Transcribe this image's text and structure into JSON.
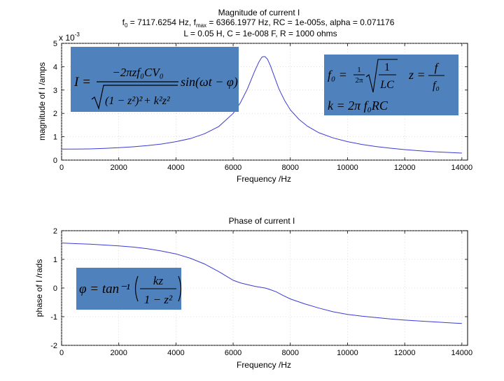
{
  "chart_data": [
    {
      "type": "line",
      "title_lines": [
        "Magnitude of current I",
        "f0 = 7117.6254 Hz, fmax = 6366.1977 Hz, RC = 1e-005s, alpha = 0.071176",
        "L = 0.05 H, C = 1e-008 F, R = 1000 ohms"
      ],
      "title_sub_line2": {
        "f_prefix": "f",
        "f_sub": "0",
        "middle": " = 7117.6254 Hz, f",
        "max_sub": "max",
        "rest": " = 6366.1977 Hz, RC = 1e-005s, alpha = 0.071176"
      },
      "xlabel": "Frequency /Hz",
      "ylabel": "magnitude of I /amps",
      "exponent_label": "x 10",
      "exponent_power": "-3",
      "xlim": [
        0,
        14200
      ],
      "ylim": [
        0,
        5
      ],
      "xticks": [
        "0",
        "2000",
        "4000",
        "6000",
        "8000",
        "10000",
        "12000",
        "14000"
      ],
      "yticks": [
        "0",
        "1",
        "2",
        "3",
        "4",
        "5"
      ],
      "grid": true,
      "line_color": "#3b3bd6",
      "series": [
        {
          "name": "magnitude",
          "x": [
            0,
            500,
            1000,
            1500,
            2000,
            2500,
            3000,
            3500,
            4000,
            4500,
            5000,
            5500,
            6000,
            6250,
            6500,
            6750,
            6900,
            7000,
            7050,
            7117,
            7200,
            7300,
            7450,
            7600,
            7800,
            8000,
            8300,
            8600,
            9000,
            9500,
            10000,
            10500,
            11000,
            11500,
            12000,
            12500,
            13000,
            13500,
            14000
          ],
          "y": [
            0.47,
            0.47,
            0.48,
            0.5,
            0.53,
            0.57,
            0.62,
            0.69,
            0.79,
            0.92,
            1.13,
            1.44,
            2.0,
            2.45,
            3.05,
            3.8,
            4.2,
            4.4,
            4.43,
            4.43,
            4.32,
            4.05,
            3.55,
            3.05,
            2.55,
            2.15,
            1.75,
            1.45,
            1.17,
            0.95,
            0.79,
            0.67,
            0.58,
            0.51,
            0.45,
            0.4,
            0.36,
            0.33,
            0.3
          ]
        }
      ]
    },
    {
      "type": "line",
      "title": "Phase of current I",
      "xlabel": "Frequency /Hz",
      "ylabel": "phase of I /rads",
      "xlim": [
        0,
        14200
      ],
      "ylim": [
        -2,
        2
      ],
      "xticks": [
        "0",
        "2000",
        "4000",
        "6000",
        "8000",
        "10000",
        "12000",
        "14000"
      ],
      "yticks": [
        "2",
        "1",
        "0",
        "-1",
        "-2"
      ],
      "grid": true,
      "line_color": "#3b3bd6",
      "series": [
        {
          "name": "phase",
          "x": [
            0,
            500,
            1000,
            1500,
            2000,
            2500,
            3000,
            3500,
            4000,
            4500,
            5000,
            5500,
            6000,
            6250,
            6500,
            6750,
            7000,
            7117,
            7250,
            7500,
            7750,
            8000,
            8500,
            9000,
            9500,
            10000,
            10500,
            11000,
            11500,
            12000,
            12500,
            13000,
            13500,
            14000
          ],
          "y": [
            1.57,
            1.55,
            1.53,
            1.5,
            1.47,
            1.43,
            1.37,
            1.29,
            1.19,
            1.04,
            0.84,
            0.57,
            0.27,
            0.18,
            0.12,
            0.06,
            0.02,
            0.0,
            -0.04,
            -0.13,
            -0.26,
            -0.38,
            -0.55,
            -0.7,
            -0.83,
            -0.92,
            -0.98,
            -1.03,
            -1.08,
            -1.12,
            -1.15,
            -1.18,
            -1.21,
            -1.24
          ]
        }
      ]
    }
  ],
  "equations": {
    "current": {
      "lhs": "I =",
      "numerator": "−2πzf₀CV₀",
      "denominator_left": "(1 − z²)²",
      "denominator_right": "+ k²z²",
      "trailing": "sin(ωt − φ)"
    },
    "resonance": {
      "f0_lhs": "f₀ =",
      "f0_coef_num": "1",
      "f0_coef_den": "2π",
      "f0_frac_num": "1",
      "f0_frac_den": "LC",
      "z_lhs": "z =",
      "z_num": "f",
      "z_den": "f₀",
      "k_line": "k = 2π f₀RC"
    },
    "phase": {
      "lhs": "φ = tan⁻¹",
      "num": "kz",
      "den": "1 − z²"
    },
    "box_color": "#4f81bd"
  }
}
